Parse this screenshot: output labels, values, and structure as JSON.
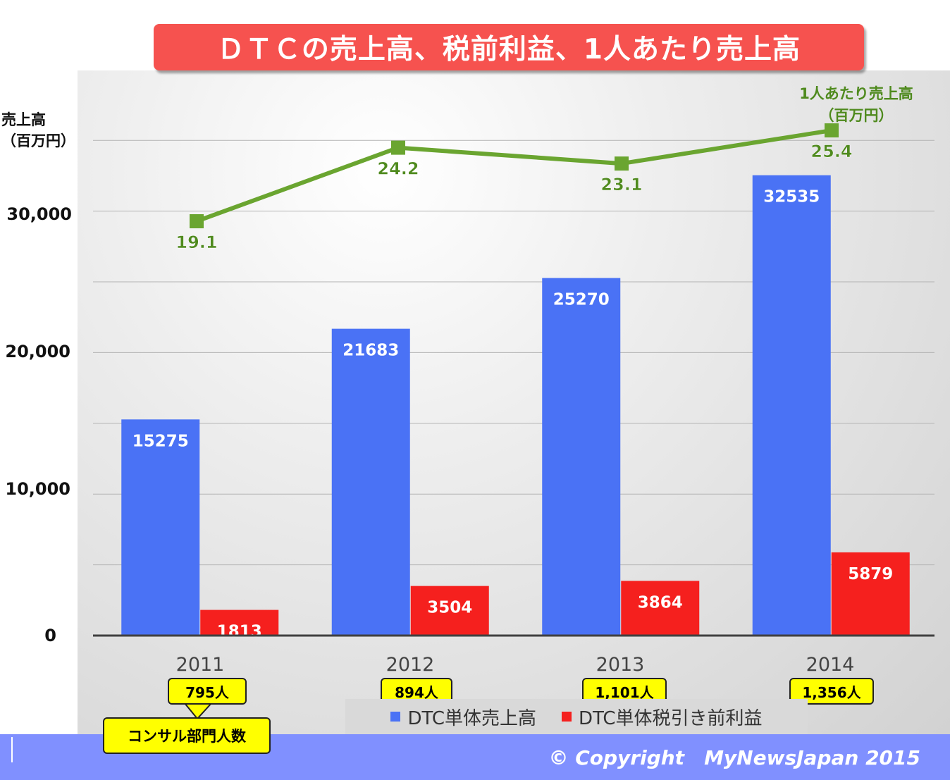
{
  "title": "ＤＴＣの売上高、税前利益、1人あたり売上高",
  "y_axis_label_line1": "売上高",
  "y_axis_label_line2": "（百万円）",
  "rate_label_line1": "1人あたり売上高",
  "rate_label_line2": "（百万円）",
  "headcount_caption": "コンサル部門人数",
  "headcounts": [
    "795人",
    "894人",
    "1,101人",
    "1,356人"
  ],
  "legend": {
    "sales": "DTC単体売上高",
    "profit": "DTC単体税引き前利益"
  },
  "copyright": "© Copyright　MyNewsJapan 2015",
  "colors": {
    "sales": "#4a72f5",
    "profit": "#f5201e",
    "rate": "#6aa530",
    "rate_label": "#4f8a1e"
  },
  "chart_data": {
    "type": "bar",
    "categories": [
      "2011",
      "2012",
      "2013",
      "2014"
    ],
    "series": [
      {
        "name": "DTC単体売上高",
        "values": [
          15275,
          21683,
          25270,
          32535
        ]
      },
      {
        "name": "DTC単体税引き前利益",
        "values": [
          1813,
          3504,
          3864,
          5879
        ]
      }
    ],
    "line_series": {
      "name": "1人あたり売上高",
      "values": [
        19.1,
        24.2,
        23.1,
        25.4
      ]
    },
    "y_ticks": [
      "0",
      "10,000",
      "20,000",
      "30,000"
    ],
    "ylim": [
      0,
      35000
    ],
    "grid": true,
    "legend_position": "bottom"
  }
}
